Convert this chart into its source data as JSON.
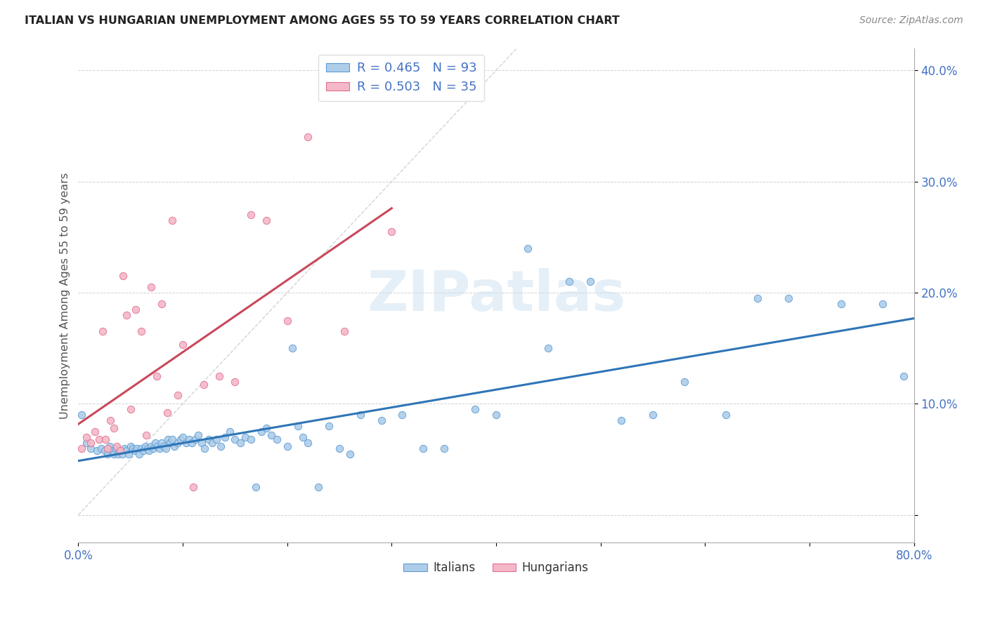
{
  "title": "ITALIAN VS HUNGARIAN UNEMPLOYMENT AMONG AGES 55 TO 59 YEARS CORRELATION CHART",
  "source": "Source: ZipAtlas.com",
  "ylabel": "Unemployment Among Ages 55 to 59 years",
  "xlim": [
    0.0,
    0.8
  ],
  "ylim": [
    -0.025,
    0.42
  ],
  "xticks": [
    0.0,
    0.1,
    0.2,
    0.3,
    0.4,
    0.5,
    0.6,
    0.7,
    0.8
  ],
  "xticklabels": [
    "0.0%",
    "",
    "",
    "",
    "",
    "",
    "",
    "",
    "80.0%"
  ],
  "yticks": [
    0.0,
    0.1,
    0.2,
    0.3,
    0.4
  ],
  "yticklabels": [
    "",
    "10.0%",
    "20.0%",
    "30.0%",
    "40.0%"
  ],
  "italian_color": "#aecde8",
  "hungarian_color": "#f4b8c8",
  "italian_edge": "#5b9bd5",
  "hungarian_edge": "#e07090",
  "trendline_italian_color": "#2e75b6",
  "trendline_hungarian_color": "#c9485b",
  "diagonal_color": "#c8c8c8",
  "watermark": "ZIPatlas",
  "background_color": "#ffffff",
  "italian_x": [
    0.003,
    0.008,
    0.012,
    0.018,
    0.022,
    0.025,
    0.028,
    0.03,
    0.032,
    0.034,
    0.036,
    0.038,
    0.04,
    0.042,
    0.044,
    0.046,
    0.048,
    0.05,
    0.052,
    0.054,
    0.056,
    0.058,
    0.06,
    0.062,
    0.064,
    0.066,
    0.068,
    0.07,
    0.072,
    0.074,
    0.076,
    0.078,
    0.08,
    0.082,
    0.084,
    0.086,
    0.088,
    0.09,
    0.092,
    0.095,
    0.098,
    0.1,
    0.103,
    0.106,
    0.109,
    0.112,
    0.115,
    0.118,
    0.121,
    0.125,
    0.128,
    0.132,
    0.136,
    0.14,
    0.145,
    0.15,
    0.155,
    0.16,
    0.165,
    0.17,
    0.175,
    0.18,
    0.185,
    0.19,
    0.2,
    0.205,
    0.21,
    0.215,
    0.22,
    0.23,
    0.24,
    0.25,
    0.26,
    0.27,
    0.29,
    0.31,
    0.33,
    0.35,
    0.38,
    0.4,
    0.43,
    0.45,
    0.47,
    0.49,
    0.52,
    0.55,
    0.58,
    0.62,
    0.65,
    0.68,
    0.73,
    0.77,
    0.79
  ],
  "italian_y": [
    0.09,
    0.065,
    0.06,
    0.058,
    0.06,
    0.058,
    0.055,
    0.062,
    0.058,
    0.055,
    0.06,
    0.055,
    0.058,
    0.055,
    0.06,
    0.058,
    0.055,
    0.062,
    0.06,
    0.058,
    0.06,
    0.055,
    0.06,
    0.058,
    0.062,
    0.06,
    0.058,
    0.062,
    0.06,
    0.065,
    0.062,
    0.06,
    0.065,
    0.062,
    0.06,
    0.068,
    0.065,
    0.068,
    0.062,
    0.065,
    0.068,
    0.07,
    0.065,
    0.068,
    0.065,
    0.068,
    0.072,
    0.065,
    0.06,
    0.068,
    0.065,
    0.068,
    0.062,
    0.07,
    0.075,
    0.068,
    0.065,
    0.07,
    0.068,
    0.025,
    0.075,
    0.078,
    0.072,
    0.068,
    0.062,
    0.15,
    0.08,
    0.07,
    0.065,
    0.025,
    0.08,
    0.06,
    0.055,
    0.09,
    0.085,
    0.09,
    0.06,
    0.06,
    0.095,
    0.09,
    0.24,
    0.15,
    0.21,
    0.21,
    0.085,
    0.09,
    0.12,
    0.09,
    0.195,
    0.195,
    0.19,
    0.19,
    0.125
  ],
  "hungarian_x": [
    0.003,
    0.008,
    0.012,
    0.016,
    0.02,
    0.023,
    0.026,
    0.028,
    0.031,
    0.034,
    0.037,
    0.04,
    0.043,
    0.046,
    0.05,
    0.055,
    0.06,
    0.065,
    0.07,
    0.075,
    0.08,
    0.085,
    0.09,
    0.095,
    0.1,
    0.11,
    0.12,
    0.135,
    0.15,
    0.165,
    0.18,
    0.2,
    0.22,
    0.255,
    0.3
  ],
  "hungarian_y": [
    0.06,
    0.07,
    0.065,
    0.075,
    0.068,
    0.165,
    0.068,
    0.06,
    0.085,
    0.078,
    0.062,
    0.058,
    0.215,
    0.18,
    0.095,
    0.185,
    0.165,
    0.072,
    0.205,
    0.125,
    0.19,
    0.092,
    0.265,
    0.108,
    0.153,
    0.025,
    0.117,
    0.125,
    0.12,
    0.27,
    0.265,
    0.175,
    0.34,
    0.165,
    0.255
  ],
  "italian_trend_x": [
    0.0,
    0.8
  ],
  "hungarian_trend_x": [
    0.0,
    0.3
  ]
}
